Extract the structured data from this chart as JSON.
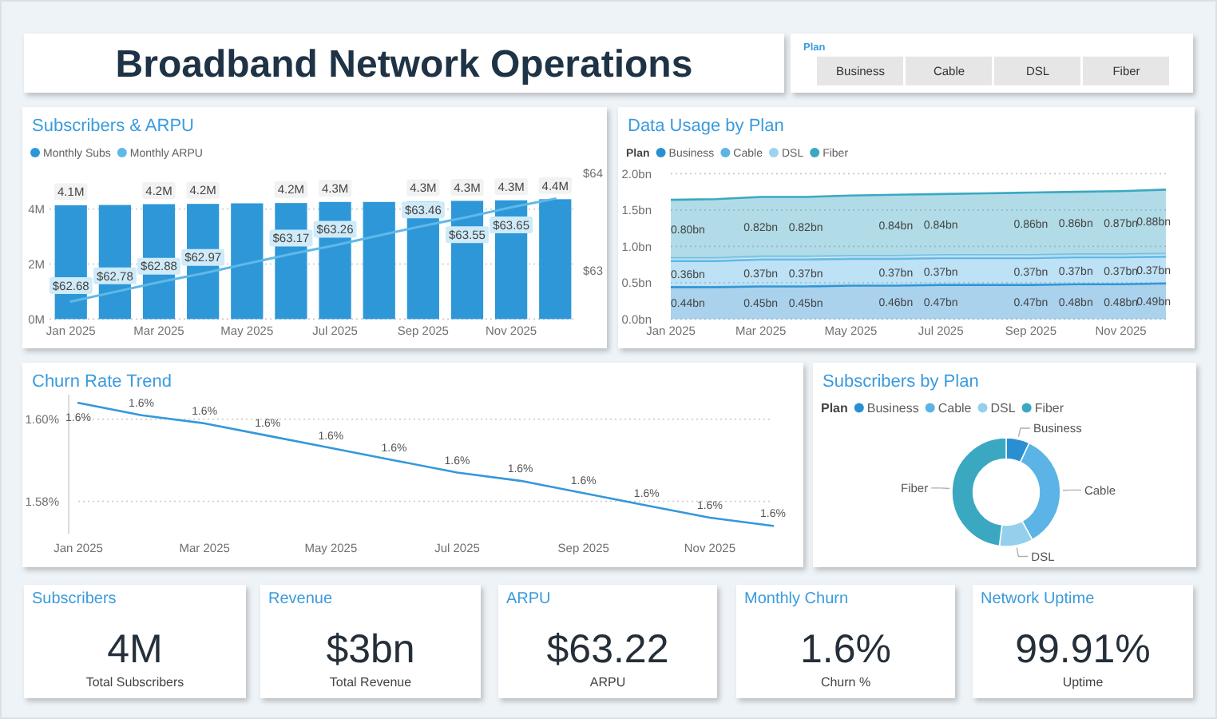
{
  "chart_data": [
    {
      "type": "other",
      "title": "Broadband Network Operations"
    },
    {
      "type": "other",
      "title": "Plan",
      "annotations": [
        "Business",
        "Cable",
        "DSL",
        "Fiber"
      ]
    },
    {
      "type": "bar",
      "title": "Subscribers & ARPU",
      "legend": "top left",
      "grid": "y",
      "categories": [
        "Jan 2025",
        null,
        "Mar 2025",
        null,
        "May 2025",
        null,
        "Jul 2025",
        null,
        "Sep 2025",
        null,
        "Nov 2025",
        null
      ],
      "series": [
        {
          "name": "Monthly Subs",
          "type": "bar",
          "color": "#2e97d8",
          "values": [
            4.14,
            4.15,
            4.18,
            4.19,
            4.21,
            4.22,
            4.26,
            4.26,
            4.28,
            4.3,
            4.32,
            4.36
          ],
          "value_labels": [
            "4.1M",
            null,
            "4.2M",
            "4.2M",
            null,
            "4.2M",
            "4.3M",
            null,
            "4.3M",
            "4.3M",
            "4.3M",
            "4.4M"
          ]
        },
        {
          "name": "Monthly ARPU",
          "type": "line",
          "axis": "y2",
          "color": "#5fb9e8",
          "values": [
            62.68,
            62.78,
            62.88,
            62.97,
            63.07,
            63.17,
            63.26,
            63.36,
            63.46,
            63.55,
            63.65,
            63.74
          ],
          "value_labels": [
            "$62.68",
            "$62.78",
            "$62.88",
            "$62.97",
            null,
            "$63.17",
            "$63.26",
            null,
            "$63.46",
            "$63.55",
            "$63.65",
            null
          ]
        }
      ],
      "ylim": [
        0,
        5.3
      ],
      "yticks": [
        {
          "value": 0,
          "label": "0M"
        },
        {
          "value": 2,
          "label": "2M"
        },
        {
          "value": 4,
          "label": "4M"
        }
      ],
      "y2lim": [
        62.5,
        64
      ],
      "y2ticks": [
        {
          "value": 63,
          "label": "$63"
        },
        {
          "value": 64,
          "label": "$64"
        }
      ]
    },
    {
      "type": "area",
      "title": "Data Usage by Plan",
      "stacked": true,
      "legend": "top left",
      "legend_title": "Plan",
      "grid": "y",
      "categories": [
        "Jan 2025",
        null,
        "Mar 2025",
        null,
        "May 2025",
        null,
        "Jul 2025",
        null,
        "Sep 2025",
        null,
        "Nov 2025",
        null
      ],
      "series": [
        {
          "name": "Business",
          "color": "#2a8fd2",
          "values": [
            0.44,
            0.44,
            0.45,
            0.45,
            0.46,
            0.46,
            0.47,
            0.47,
            0.47,
            0.48,
            0.48,
            0.49
          ],
          "value_labels": [
            "0.44bn",
            null,
            "0.45bn",
            "0.45bn",
            null,
            "0.46bn",
            "0.47bn",
            null,
            "0.47bn",
            "0.48bn",
            "0.48bn",
            "0.49bn"
          ]
        },
        {
          "name": "Cable",
          "color": "#5bb4e5",
          "values": [
            0.36,
            0.36,
            0.37,
            0.37,
            0.37,
            0.37,
            0.37,
            0.37,
            0.37,
            0.37,
            0.37,
            0.37
          ],
          "value_labels": [
            "0.36bn",
            null,
            "0.37bn",
            "0.37bn",
            null,
            "0.37bn",
            "0.37bn",
            null,
            "0.37bn",
            "0.37bn",
            "0.37bn",
            "0.37bn"
          ]
        },
        {
          "name": "DSL",
          "color": "#9bd3ef",
          "values": [
            0.04,
            0.04,
            0.04,
            0.04,
            0.04,
            0.04,
            0.04,
            0.04,
            0.04,
            0.04,
            0.04,
            0.04
          ]
        },
        {
          "name": "Fiber",
          "color": "#3ba8c2",
          "values": [
            0.8,
            0.81,
            0.82,
            0.82,
            0.83,
            0.84,
            0.84,
            0.85,
            0.86,
            0.86,
            0.87,
            0.88
          ],
          "value_labels": [
            "0.80bn",
            null,
            "0.82bn",
            "0.82bn",
            null,
            "0.84bn",
            "0.84bn",
            null,
            "0.86bn",
            "0.86bn",
            "0.87bn",
            "0.88bn"
          ]
        }
      ],
      "ylim": [
        0,
        2
      ],
      "yticks": [
        {
          "value": 0,
          "label": "0.0bn"
        },
        {
          "value": 0.5,
          "label": "0.5bn"
        },
        {
          "value": 1,
          "label": "1.0bn"
        },
        {
          "value": 1.5,
          "label": "1.5bn"
        },
        {
          "value": 2,
          "label": "2.0bn"
        }
      ]
    },
    {
      "type": "line",
      "title": "Churn Rate Trend",
      "grid": "y",
      "color": "#3598db",
      "categories": [
        "Jan 2025",
        null,
        "Mar 2025",
        null,
        "May 2025",
        null,
        "Jul 2025",
        null,
        "Sep 2025",
        null,
        "Nov 2025",
        null
      ],
      "values": [
        1.604,
        1.601,
        1.599,
        1.596,
        1.593,
        1.59,
        1.587,
        1.585,
        1.582,
        1.579,
        1.576,
        1.574
      ],
      "value_labels": [
        "1.6%",
        "1.6%",
        "1.6%",
        "1.6%",
        "1.6%",
        "1.6%",
        "1.6%",
        "1.6%",
        "1.6%",
        "1.6%",
        "1.6%",
        "1.6%"
      ],
      "ylim": [
        1.572,
        1.606
      ],
      "yticks": [
        {
          "value": 1.58,
          "label": "1.58%"
        },
        {
          "value": 1.6,
          "label": "1.60%"
        }
      ]
    },
    {
      "type": "donut",
      "title": "Subscribers by Plan",
      "legend": "top left",
      "legend_title": "Plan",
      "categories": [
        "Business",
        "Cable",
        "DSL",
        "Fiber"
      ],
      "values": [
        7,
        35,
        10,
        48
      ],
      "colors": [
        "#2a8fd2",
        "#5bb4e5",
        "#94d0ec",
        "#3ba8c2"
      ]
    },
    {
      "type": "other",
      "title": "Subscribers",
      "annotations": [
        "4M",
        "Total Subscribers"
      ]
    },
    {
      "type": "other",
      "title": "Revenue",
      "annotations": [
        "$3bn",
        "Total Revenue"
      ]
    },
    {
      "type": "other",
      "title": "ARPU",
      "annotations": [
        "$63.22",
        "ARPU"
      ]
    },
    {
      "type": "other",
      "title": "Monthly Churn",
      "annotations": [
        "1.6%",
        "Churn %"
      ]
    },
    {
      "type": "other",
      "title": "Network Uptime",
      "annotations": [
        "99.91%",
        "Uptime"
      ]
    }
  ]
}
